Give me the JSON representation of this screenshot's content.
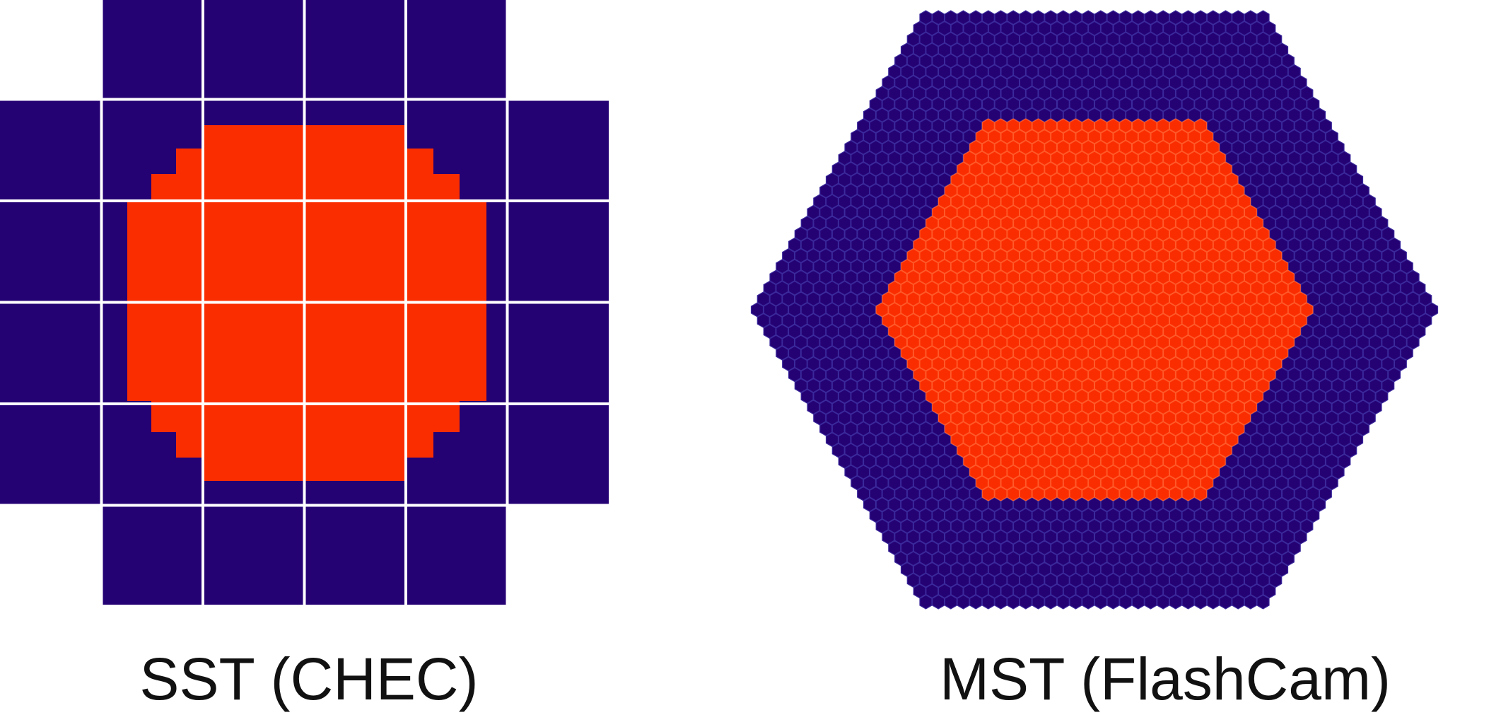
{
  "colors": {
    "background": "#ffffff",
    "camera_pixel": "#250274",
    "pixel_border": "#3b2a9c",
    "hot_region": "#fa2d00",
    "module_gap": "#ffffff"
  },
  "panels": [
    {
      "id": "sst",
      "caption": "SST (CHEC)",
      "pixel_shape": "square",
      "module_layout": "6x6 grid of square modules with the four corners removed"
    },
    {
      "id": "mst",
      "caption": "MST (FlashCam)",
      "pixel_shape": "hexagon",
      "camera_outline": "hexagon"
    }
  ]
}
